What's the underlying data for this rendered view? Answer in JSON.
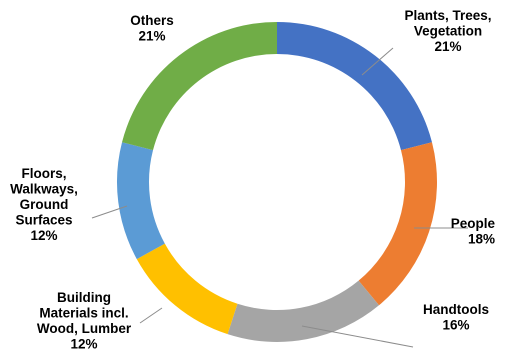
{
  "chart_data": {
    "type": "pie",
    "donut": true,
    "slices": [
      {
        "label_lines": [
          "Plants, Trees,",
          "Vegetation"
        ],
        "value": 21,
        "value_label": "21%",
        "color": "#4472c4"
      },
      {
        "label_lines": [
          "People"
        ],
        "value": 18,
        "value_label": "18%",
        "color": "#ed7d31"
      },
      {
        "label_lines": [
          "Handtools"
        ],
        "value": 16,
        "value_label": "16%",
        "color": "#a5a5a5"
      },
      {
        "label_lines": [
          "Building",
          "Materials incl.",
          "Wood, Lumber"
        ],
        "value": 12,
        "value_label": "12%",
        "color": "#ffc000"
      },
      {
        "label_lines": [
          "Floors,",
          "Walkways,",
          "Ground",
          "Surfaces"
        ],
        "value": 12,
        "value_label": "12%",
        "color": "#5b9bd5"
      },
      {
        "label_lines": [
          "Others"
        ],
        "value": 21,
        "value_label": "21%",
        "color": "#70ad47"
      }
    ],
    "start_angle_deg": 0,
    "direction": "clockwise",
    "legend": "none",
    "data_labels": "outside"
  }
}
